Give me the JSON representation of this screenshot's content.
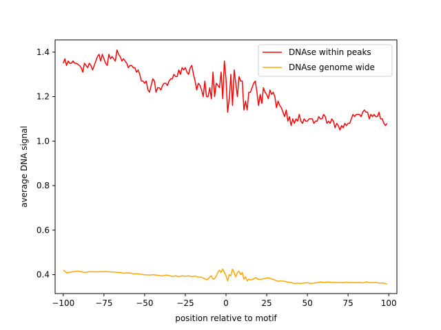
{
  "chart_data": {
    "type": "line",
    "title": "",
    "xlabel": "position relative to motif",
    "ylabel": "average DNA signal",
    "xlim": [
      -105,
      105
    ],
    "ylim": [
      0.315,
      1.455
    ],
    "x_ticks": [
      -100,
      -75,
      -50,
      -25,
      0,
      25,
      50,
      75,
      100
    ],
    "x_tick_labels": [
      "−100",
      "−75",
      "−50",
      "−25",
      "0",
      "25",
      "50",
      "75",
      "100"
    ],
    "y_ticks": [
      0.4,
      0.6,
      0.8,
      1.0,
      1.2,
      1.4
    ],
    "y_tick_labels": [
      "0.4",
      "0.6",
      "0.8",
      "1.0",
      "1.2",
      "1.4"
    ],
    "grid": false,
    "legend_position": "top-right",
    "series": [
      {
        "name": "DNAse within peaks",
        "color": "#ff0000",
        "points": [
          [
            -100,
            1.35
          ],
          [
            -99,
            1.37
          ],
          [
            -98,
            1.34
          ],
          [
            -97,
            1.36
          ],
          [
            -96,
            1.35
          ],
          [
            -95,
            1.35
          ],
          [
            -94,
            1.36
          ],
          [
            -93,
            1.35
          ],
          [
            -92,
            1.35
          ],
          [
            -90,
            1.34
          ],
          [
            -89,
            1.33
          ],
          [
            -88,
            1.31
          ],
          [
            -87,
            1.35
          ],
          [
            -86,
            1.34
          ],
          [
            -85,
            1.33
          ],
          [
            -84,
            1.35
          ],
          [
            -83,
            1.34
          ],
          [
            -82,
            1.32
          ],
          [
            -80,
            1.36
          ],
          [
            -79,
            1.38
          ],
          [
            -78,
            1.39
          ],
          [
            -77,
            1.36
          ],
          [
            -76,
            1.39
          ],
          [
            -75,
            1.37
          ],
          [
            -74,
            1.35
          ],
          [
            -73,
            1.34
          ],
          [
            -72,
            1.39
          ],
          [
            -71,
            1.37
          ],
          [
            -70,
            1.38
          ],
          [
            -69,
            1.37
          ],
          [
            -68,
            1.36
          ],
          [
            -67,
            1.41
          ],
          [
            -66,
            1.39
          ],
          [
            -65,
            1.38
          ],
          [
            -64,
            1.36
          ],
          [
            -63,
            1.37
          ],
          [
            -61,
            1.35
          ],
          [
            -60,
            1.33
          ],
          [
            -59,
            1.34
          ],
          [
            -58,
            1.34
          ],
          [
            -57,
            1.33
          ],
          [
            -56,
            1.33
          ],
          [
            -55,
            1.31
          ],
          [
            -54,
            1.32
          ],
          [
            -53,
            1.3
          ],
          [
            -52,
            1.27
          ],
          [
            -51,
            1.27
          ],
          [
            -50,
            1.26
          ],
          [
            -49,
            1.27
          ],
          [
            -48,
            1.23
          ],
          [
            -47,
            1.22
          ],
          [
            -46,
            1.25
          ],
          [
            -45,
            1.28
          ],
          [
            -44,
            1.27
          ],
          [
            -43,
            1.22
          ],
          [
            -42,
            1.24
          ],
          [
            -41,
            1.24
          ],
          [
            -40,
            1.23
          ],
          [
            -39,
            1.25
          ],
          [
            -38,
            1.26
          ],
          [
            -37,
            1.26
          ],
          [
            -36,
            1.25
          ],
          [
            -35,
            1.27
          ],
          [
            -34,
            1.28
          ],
          [
            -33,
            1.28
          ],
          [
            -32,
            1.3
          ],
          [
            -31,
            1.29
          ],
          [
            -30,
            1.29
          ],
          [
            -29,
            1.32
          ],
          [
            -28,
            1.3
          ],
          [
            -27,
            1.33
          ],
          [
            -26,
            1.32
          ],
          [
            -25,
            1.33
          ],
          [
            -24,
            1.31
          ],
          [
            -23,
            1.3
          ],
          [
            -22,
            1.33
          ],
          [
            -21,
            1.34
          ],
          [
            -20,
            1.3
          ],
          [
            -19,
            1.27
          ],
          [
            -18,
            1.23
          ],
          [
            -17,
            1.26
          ],
          [
            -16,
            1.25
          ],
          [
            -15,
            1.23
          ],
          [
            -14,
            1.2
          ],
          [
            -13,
            1.27
          ],
          [
            -12,
            1.2
          ],
          [
            -11,
            1.2
          ],
          [
            -10,
            1.24
          ],
          [
            -9,
            1.19
          ],
          [
            -8,
            1.31
          ],
          [
            -7,
            1.2
          ],
          [
            -6,
            1.26
          ],
          [
            -5,
            1.25
          ],
          [
            -4,
            1.24
          ],
          [
            -3,
            1.31
          ],
          [
            -2,
            1.19
          ],
          [
            -1,
            1.36
          ],
          [
            0,
            1.28
          ],
          [
            1,
            1.13
          ],
          [
            2,
            1.19
          ],
          [
            3,
            1.3
          ],
          [
            4,
            1.16
          ],
          [
            5,
            1.32
          ],
          [
            6,
            1.26
          ],
          [
            7,
            1.2
          ],
          [
            8,
            1.29
          ],
          [
            9,
            1.27
          ],
          [
            10,
            1.27
          ],
          [
            11,
            1.14
          ],
          [
            12,
            1.18
          ],
          [
            13,
            1.14
          ],
          [
            14,
            1.22
          ],
          [
            15,
            1.22
          ],
          [
            16,
            1.24
          ],
          [
            17,
            1.26
          ],
          [
            18,
            1.27
          ],
          [
            19,
            1.22
          ],
          [
            20,
            1.16
          ],
          [
            21,
            1.21
          ],
          [
            22,
            1.17
          ],
          [
            23,
            1.24
          ],
          [
            24,
            1.22
          ],
          [
            25,
            1.21
          ],
          [
            26,
            1.19
          ],
          [
            27,
            1.23
          ],
          [
            28,
            1.21
          ],
          [
            29,
            1.22
          ],
          [
            30,
            1.2
          ],
          [
            31,
            1.15
          ],
          [
            32,
            1.18
          ],
          [
            33,
            1.16
          ],
          [
            34,
            1.15
          ],
          [
            35,
            1.13
          ],
          [
            36,
            1.11
          ],
          [
            37,
            1.14
          ],
          [
            38,
            1.09
          ],
          [
            39,
            1.11
          ],
          [
            40,
            1.07
          ],
          [
            41,
            1.1
          ],
          [
            42,
            1.08
          ],
          [
            43,
            1.1
          ],
          [
            44,
            1.09
          ],
          [
            45,
            1.12
          ],
          [
            46,
            1.09
          ],
          [
            47,
            1.08
          ],
          [
            48,
            1.1
          ],
          [
            49,
            1.09
          ],
          [
            50,
            1.09
          ],
          [
            51,
            1.1
          ],
          [
            52,
            1.1
          ],
          [
            53,
            1.1
          ],
          [
            54,
            1.08
          ],
          [
            55,
            1.09
          ],
          [
            56,
            1.09
          ],
          [
            57,
            1.11
          ],
          [
            58,
            1.1
          ],
          [
            59,
            1.1
          ],
          [
            60,
            1.12
          ],
          [
            61,
            1.11
          ],
          [
            62,
            1.08
          ],
          [
            63,
            1.09
          ],
          [
            64,
            1.08
          ],
          [
            65,
            1.1
          ],
          [
            66,
            1.09
          ],
          [
            67,
            1.06
          ],
          [
            68,
            1.08
          ],
          [
            69,
            1.07
          ],
          [
            70,
            1.05
          ],
          [
            71,
            1.07
          ],
          [
            72,
            1.06
          ],
          [
            73,
            1.08
          ],
          [
            74,
            1.07
          ],
          [
            75,
            1.08
          ],
          [
            76,
            1.08
          ],
          [
            77,
            1.1
          ],
          [
            78,
            1.12
          ],
          [
            79,
            1.11
          ],
          [
            80,
            1.12
          ],
          [
            81,
            1.12
          ],
          [
            82,
            1.12
          ],
          [
            83,
            1.11
          ],
          [
            84,
            1.13
          ],
          [
            85,
            1.14
          ],
          [
            86,
            1.13
          ],
          [
            87,
            1.13
          ],
          [
            88,
            1.1
          ],
          [
            89,
            1.12
          ],
          [
            90,
            1.11
          ],
          [
            91,
            1.12
          ],
          [
            92,
            1.11
          ],
          [
            93,
            1.11
          ],
          [
            94,
            1.13
          ],
          [
            95,
            1.1
          ],
          [
            96,
            1.1
          ],
          [
            97,
            1.08
          ],
          [
            98,
            1.07
          ],
          [
            99,
            1.08
          ]
        ]
      },
      {
        "name": "DNAse genome wide",
        "color": "#ffa500",
        "points": [
          [
            -100,
            0.42
          ],
          [
            -99,
            0.415
          ],
          [
            -98,
            0.408
          ],
          [
            -97,
            0.41
          ],
          [
            -96,
            0.41
          ],
          [
            -95,
            0.412
          ],
          [
            -93,
            0.414
          ],
          [
            -91,
            0.416
          ],
          [
            -89,
            0.413
          ],
          [
            -87,
            0.41
          ],
          [
            -85,
            0.412
          ],
          [
            -83,
            0.414
          ],
          [
            -81,
            0.413
          ],
          [
            -79,
            0.412
          ],
          [
            -77,
            0.414
          ],
          [
            -75,
            0.413
          ],
          [
            -73,
            0.414
          ],
          [
            -71,
            0.412
          ],
          [
            -69,
            0.412
          ],
          [
            -67,
            0.41
          ],
          [
            -65,
            0.41
          ],
          [
            -63,
            0.406
          ],
          [
            -61,
            0.408
          ],
          [
            -59,
            0.407
          ],
          [
            -57,
            0.404
          ],
          [
            -55,
            0.404
          ],
          [
            -53,
            0.403
          ],
          [
            -51,
            0.4
          ],
          [
            -49,
            0.399
          ],
          [
            -47,
            0.398
          ],
          [
            -45,
            0.4
          ],
          [
            -43,
            0.398
          ],
          [
            -41,
            0.396
          ],
          [
            -39,
            0.394
          ],
          [
            -37,
            0.398
          ],
          [
            -35,
            0.396
          ],
          [
            -33,
            0.392
          ],
          [
            -31,
            0.395
          ],
          [
            -29,
            0.391
          ],
          [
            -27,
            0.395
          ],
          [
            -25,
            0.393
          ],
          [
            -23,
            0.395
          ],
          [
            -21,
            0.391
          ],
          [
            -19,
            0.394
          ],
          [
            -17,
            0.389
          ],
          [
            -15,
            0.388
          ],
          [
            -13,
            0.381
          ],
          [
            -12,
            0.377
          ],
          [
            -11,
            0.38
          ],
          [
            -10,
            0.39
          ],
          [
            -9,
            0.395
          ],
          [
            -8,
            0.38
          ],
          [
            -7,
            0.382
          ],
          [
            -6,
            0.394
          ],
          [
            -5,
            0.41
          ],
          [
            -4,
            0.42
          ],
          [
            -3,
            0.41
          ],
          [
            -2,
            0.425
          ],
          [
            -1,
            0.41
          ],
          [
            0,
            0.395
          ],
          [
            1,
            0.372
          ],
          [
            2,
            0.4
          ],
          [
            3,
            0.395
          ],
          [
            4,
            0.425
          ],
          [
            5,
            0.41
          ],
          [
            6,
            0.39
          ],
          [
            7,
            0.41
          ],
          [
            8,
            0.415
          ],
          [
            9,
            0.4
          ],
          [
            10,
            0.41
          ],
          [
            11,
            0.38
          ],
          [
            12,
            0.39
          ],
          [
            13,
            0.372
          ],
          [
            14,
            0.38
          ],
          [
            15,
            0.375
          ],
          [
            16,
            0.38
          ],
          [
            17,
            0.38
          ],
          [
            18,
            0.387
          ],
          [
            19,
            0.384
          ],
          [
            20,
            0.378
          ],
          [
            22,
            0.38
          ],
          [
            24,
            0.383
          ],
          [
            26,
            0.386
          ],
          [
            28,
            0.381
          ],
          [
            30,
            0.376
          ],
          [
            32,
            0.37
          ],
          [
            34,
            0.372
          ],
          [
            36,
            0.37
          ],
          [
            38,
            0.366
          ],
          [
            40,
            0.365
          ],
          [
            42,
            0.36
          ],
          [
            44,
            0.362
          ],
          [
            46,
            0.36
          ],
          [
            48,
            0.362
          ],
          [
            50,
            0.364
          ],
          [
            52,
            0.36
          ],
          [
            54,
            0.362
          ],
          [
            56,
            0.364
          ],
          [
            58,
            0.367
          ],
          [
            60,
            0.365
          ],
          [
            62,
            0.367
          ],
          [
            64,
            0.366
          ],
          [
            66,
            0.365
          ],
          [
            68,
            0.365
          ],
          [
            70,
            0.364
          ],
          [
            72,
            0.364
          ],
          [
            74,
            0.366
          ],
          [
            76,
            0.364
          ],
          [
            78,
            0.365
          ],
          [
            80,
            0.364
          ],
          [
            82,
            0.365
          ],
          [
            84,
            0.363
          ],
          [
            86,
            0.367
          ],
          [
            88,
            0.365
          ],
          [
            90,
            0.364
          ],
          [
            92,
            0.365
          ],
          [
            94,
            0.362
          ],
          [
            96,
            0.363
          ],
          [
            98,
            0.36
          ],
          [
            99,
            0.358
          ]
        ]
      }
    ]
  }
}
